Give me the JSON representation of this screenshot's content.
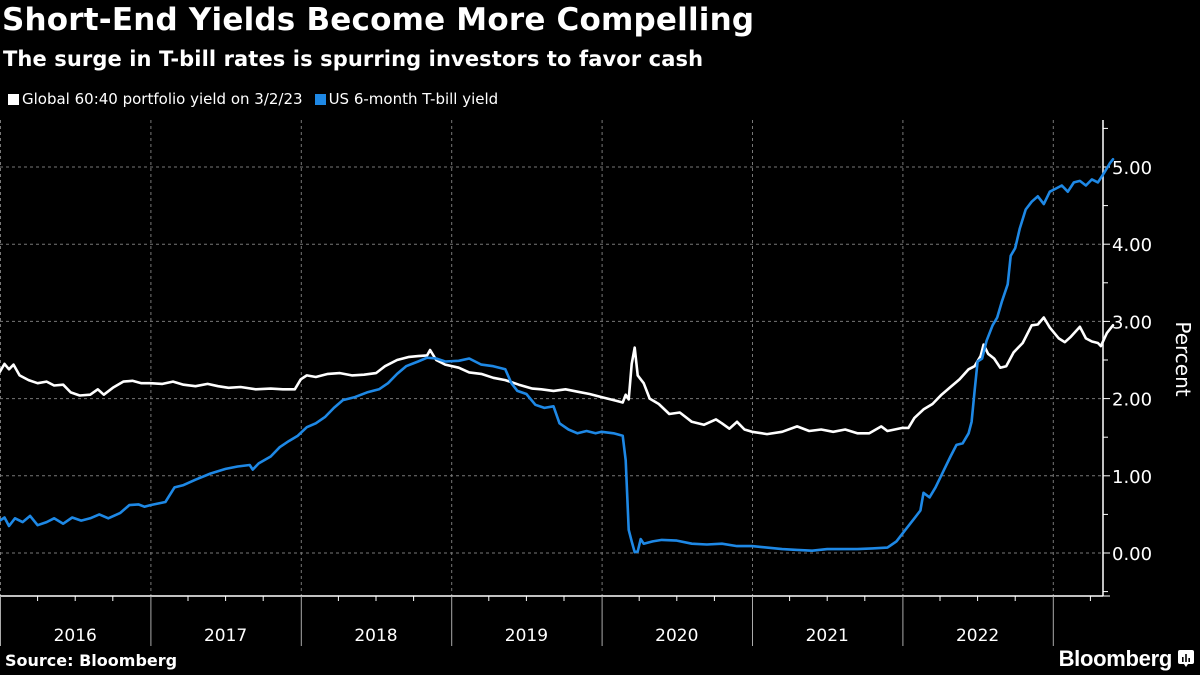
{
  "title": "Short-End Yields Become More Compelling",
  "subtitle": "The surge in T-bill rates is spurring investors to favor cash",
  "source": "Source: Bloomberg",
  "brand": "Bloomberg",
  "colors": {
    "background": "#000000",
    "portfolio": "#ffffff",
    "tbill": "#1e88e5",
    "grid": "#777777"
  },
  "chart_data": {
    "type": "line",
    "title": "Short-End Yields Become More Compelling",
    "subtitle": "The surge in T-bill rates is spurring investors to favor cash",
    "xlabel": "",
    "ylabel": "Percent",
    "xlim": [
      2016.0,
      2023.33
    ],
    "ylim": [
      -0.55,
      5.6
    ],
    "x_ticks": [
      "2016",
      "2017",
      "2018",
      "2019",
      "2020",
      "2021",
      "2022"
    ],
    "y_ticks": [
      "0.00",
      "1.00",
      "2.00",
      "3.00",
      "4.00",
      "5.00"
    ],
    "y_tick_values": [
      0,
      1,
      2,
      3,
      4,
      5
    ],
    "grid": true,
    "legend_position": "top-left",
    "series": [
      {
        "name": "Global 60:40 portfolio yield on 3/2/23",
        "color": "#ffffff",
        "points": [
          [
            2016.0,
            2.35
          ],
          [
            2016.03,
            2.45
          ],
          [
            2016.06,
            2.38
          ],
          [
            2016.09,
            2.44
          ],
          [
            2016.13,
            2.3
          ],
          [
            2016.19,
            2.24
          ],
          [
            2016.25,
            2.2
          ],
          [
            2016.31,
            2.22
          ],
          [
            2016.36,
            2.17
          ],
          [
            2016.42,
            2.18
          ],
          [
            2016.47,
            2.08
          ],
          [
            2016.53,
            2.04
          ],
          [
            2016.6,
            2.05
          ],
          [
            2016.65,
            2.12
          ],
          [
            2016.69,
            2.05
          ],
          [
            2016.75,
            2.14
          ],
          [
            2016.82,
            2.22
          ],
          [
            2016.88,
            2.23
          ],
          [
            2016.94,
            2.2
          ],
          [
            2017.0,
            2.2
          ],
          [
            2017.08,
            2.19
          ],
          [
            2017.15,
            2.22
          ],
          [
            2017.22,
            2.18
          ],
          [
            2017.3,
            2.16
          ],
          [
            2017.38,
            2.19
          ],
          [
            2017.45,
            2.16
          ],
          [
            2017.52,
            2.14
          ],
          [
            2017.6,
            2.15
          ],
          [
            2017.7,
            2.12
          ],
          [
            2017.8,
            2.13
          ],
          [
            2017.88,
            2.12
          ],
          [
            2017.96,
            2.12
          ],
          [
            2018.0,
            2.25
          ],
          [
            2018.04,
            2.3
          ],
          [
            2018.1,
            2.28
          ],
          [
            2018.18,
            2.32
          ],
          [
            2018.26,
            2.33
          ],
          [
            2018.34,
            2.3
          ],
          [
            2018.42,
            2.31
          ],
          [
            2018.5,
            2.33
          ],
          [
            2018.56,
            2.42
          ],
          [
            2018.64,
            2.5
          ],
          [
            2018.72,
            2.54
          ],
          [
            2018.78,
            2.55
          ],
          [
            2018.84,
            2.56
          ],
          [
            2018.86,
            2.63
          ],
          [
            2018.9,
            2.5
          ],
          [
            2018.96,
            2.44
          ],
          [
            2019.05,
            2.4
          ],
          [
            2019.12,
            2.34
          ],
          [
            2019.2,
            2.32
          ],
          [
            2019.28,
            2.27
          ],
          [
            2019.36,
            2.24
          ],
          [
            2019.45,
            2.18
          ],
          [
            2019.54,
            2.13
          ],
          [
            2019.6,
            2.12
          ],
          [
            2019.68,
            2.1
          ],
          [
            2019.76,
            2.12
          ],
          [
            2019.84,
            2.09
          ],
          [
            2019.92,
            2.06
          ],
          [
            2020.0,
            2.02
          ],
          [
            2020.1,
            1.97
          ],
          [
            2020.14,
            1.95
          ],
          [
            2020.16,
            2.05
          ],
          [
            2020.18,
            1.99
          ],
          [
            2020.2,
            2.45
          ],
          [
            2020.22,
            2.66
          ],
          [
            2020.24,
            2.3
          ],
          [
            2020.28,
            2.2
          ],
          [
            2020.32,
            2.0
          ],
          [
            2020.38,
            1.93
          ],
          [
            2020.45,
            1.8
          ],
          [
            2020.52,
            1.82
          ],
          [
            2020.6,
            1.7
          ],
          [
            2020.68,
            1.66
          ],
          [
            2020.76,
            1.73
          ],
          [
            2020.8,
            1.68
          ],
          [
            2020.85,
            1.61
          ],
          [
            2020.9,
            1.7
          ],
          [
            2020.95,
            1.6
          ],
          [
            2021.0,
            1.57
          ],
          [
            2021.1,
            1.54
          ],
          [
            2021.2,
            1.57
          ],
          [
            2021.3,
            1.64
          ],
          [
            2021.38,
            1.58
          ],
          [
            2021.46,
            1.6
          ],
          [
            2021.54,
            1.57
          ],
          [
            2021.62,
            1.6
          ],
          [
            2021.7,
            1.55
          ],
          [
            2021.78,
            1.55
          ],
          [
            2021.86,
            1.64
          ],
          [
            2021.9,
            1.58
          ],
          [
            2022.0,
            1.62
          ],
          [
            2022.04,
            1.62
          ],
          [
            2022.08,
            1.75
          ],
          [
            2022.14,
            1.86
          ],
          [
            2022.2,
            1.93
          ],
          [
            2022.26,
            2.05
          ],
          [
            2022.32,
            2.15
          ],
          [
            2022.38,
            2.25
          ],
          [
            2022.44,
            2.38
          ],
          [
            2022.48,
            2.42
          ],
          [
            2022.52,
            2.55
          ],
          [
            2022.54,
            2.7
          ],
          [
            2022.57,
            2.58
          ],
          [
            2022.61,
            2.52
          ],
          [
            2022.65,
            2.4
          ],
          [
            2022.69,
            2.42
          ],
          [
            2022.74,
            2.6
          ],
          [
            2022.8,
            2.72
          ],
          [
            2022.86,
            2.95
          ],
          [
            2022.9,
            2.96
          ],
          [
            2022.94,
            3.05
          ],
          [
            2022.98,
            2.92
          ],
          [
            2023.04,
            2.78
          ],
          [
            2023.08,
            2.73
          ],
          [
            2023.12,
            2.8
          ],
          [
            2023.18,
            2.93
          ],
          [
            2023.22,
            2.78
          ],
          [
            2023.26,
            2.74
          ],
          [
            2023.3,
            2.72
          ],
          [
            2023.32,
            2.68
          ],
          [
            2023.36,
            2.85
          ],
          [
            2023.4,
            2.95
          ]
        ]
      },
      {
        "name": "US 6-month T-bill yield",
        "color": "#1e88e5",
        "points": [
          [
            2016.0,
            0.42
          ],
          [
            2016.03,
            0.46
          ],
          [
            2016.06,
            0.35
          ],
          [
            2016.1,
            0.45
          ],
          [
            2016.15,
            0.4
          ],
          [
            2016.2,
            0.48
          ],
          [
            2016.25,
            0.36
          ],
          [
            2016.31,
            0.4
          ],
          [
            2016.36,
            0.45
          ],
          [
            2016.42,
            0.38
          ],
          [
            2016.48,
            0.46
          ],
          [
            2016.54,
            0.42
          ],
          [
            2016.6,
            0.45
          ],
          [
            2016.66,
            0.5
          ],
          [
            2016.72,
            0.45
          ],
          [
            2016.8,
            0.52
          ],
          [
            2016.86,
            0.62
          ],
          [
            2016.92,
            0.63
          ],
          [
            2016.96,
            0.6
          ],
          [
            2017.0,
            0.62
          ],
          [
            2017.1,
            0.66
          ],
          [
            2017.16,
            0.85
          ],
          [
            2017.22,
            0.88
          ],
          [
            2017.3,
            0.95
          ],
          [
            2017.4,
            1.03
          ],
          [
            2017.5,
            1.09
          ],
          [
            2017.58,
            1.12
          ],
          [
            2017.66,
            1.14
          ],
          [
            2017.68,
            1.08
          ],
          [
            2017.72,
            1.16
          ],
          [
            2017.8,
            1.25
          ],
          [
            2017.86,
            1.37
          ],
          [
            2017.92,
            1.45
          ],
          [
            2017.98,
            1.52
          ],
          [
            2018.04,
            1.63
          ],
          [
            2018.1,
            1.68
          ],
          [
            2018.16,
            1.76
          ],
          [
            2018.22,
            1.88
          ],
          [
            2018.28,
            1.98
          ],
          [
            2018.36,
            2.02
          ],
          [
            2018.44,
            2.08
          ],
          [
            2018.52,
            2.12
          ],
          [
            2018.58,
            2.2
          ],
          [
            2018.64,
            2.32
          ],
          [
            2018.7,
            2.42
          ],
          [
            2018.78,
            2.48
          ],
          [
            2018.84,
            2.53
          ],
          [
            2018.9,
            2.52
          ],
          [
            2018.96,
            2.48
          ],
          [
            2019.05,
            2.49
          ],
          [
            2019.12,
            2.52
          ],
          [
            2019.2,
            2.44
          ],
          [
            2019.28,
            2.42
          ],
          [
            2019.36,
            2.38
          ],
          [
            2019.4,
            2.2
          ],
          [
            2019.44,
            2.1
          ],
          [
            2019.5,
            2.06
          ],
          [
            2019.56,
            1.92
          ],
          [
            2019.62,
            1.88
          ],
          [
            2019.68,
            1.9
          ],
          [
            2019.72,
            1.68
          ],
          [
            2019.78,
            1.6
          ],
          [
            2019.84,
            1.55
          ],
          [
            2019.9,
            1.58
          ],
          [
            2019.96,
            1.55
          ],
          [
            2020.0,
            1.57
          ],
          [
            2020.08,
            1.55
          ],
          [
            2020.14,
            1.52
          ],
          [
            2020.16,
            1.2
          ],
          [
            2020.18,
            0.3
          ],
          [
            2020.2,
            0.15
          ],
          [
            2020.22,
            0.01
          ],
          [
            2020.24,
            0.02
          ],
          [
            2020.26,
            0.18
          ],
          [
            2020.28,
            0.12
          ],
          [
            2020.34,
            0.15
          ],
          [
            2020.4,
            0.17
          ],
          [
            2020.5,
            0.16
          ],
          [
            2020.6,
            0.12
          ],
          [
            2020.7,
            0.11
          ],
          [
            2020.8,
            0.12
          ],
          [
            2020.9,
            0.09
          ],
          [
            2021.0,
            0.09
          ],
          [
            2021.1,
            0.07
          ],
          [
            2021.2,
            0.05
          ],
          [
            2021.3,
            0.04
          ],
          [
            2021.4,
            0.03
          ],
          [
            2021.5,
            0.05
          ],
          [
            2021.6,
            0.05
          ],
          [
            2021.7,
            0.05
          ],
          [
            2021.8,
            0.06
          ],
          [
            2021.9,
            0.07
          ],
          [
            2021.96,
            0.15
          ],
          [
            2022.02,
            0.3
          ],
          [
            2022.08,
            0.45
          ],
          [
            2022.12,
            0.55
          ],
          [
            2022.14,
            0.78
          ],
          [
            2022.18,
            0.72
          ],
          [
            2022.22,
            0.85
          ],
          [
            2022.27,
            1.05
          ],
          [
            2022.32,
            1.25
          ],
          [
            2022.36,
            1.4
          ],
          [
            2022.4,
            1.42
          ],
          [
            2022.44,
            1.55
          ],
          [
            2022.46,
            1.7
          ],
          [
            2022.48,
            2.1
          ],
          [
            2022.5,
            2.48
          ],
          [
            2022.53,
            2.52
          ],
          [
            2022.56,
            2.75
          ],
          [
            2022.6,
            2.95
          ],
          [
            2022.63,
            3.05
          ],
          [
            2022.66,
            3.25
          ],
          [
            2022.7,
            3.48
          ],
          [
            2022.72,
            3.85
          ],
          [
            2022.75,
            3.95
          ],
          [
            2022.78,
            4.2
          ],
          [
            2022.82,
            4.45
          ],
          [
            2022.86,
            4.55
          ],
          [
            2022.9,
            4.62
          ],
          [
            2022.94,
            4.52
          ],
          [
            2022.98,
            4.68
          ],
          [
            2023.02,
            4.72
          ],
          [
            2023.06,
            4.76
          ],
          [
            2023.1,
            4.68
          ],
          [
            2023.14,
            4.8
          ],
          [
            2023.18,
            4.82
          ],
          [
            2023.22,
            4.76
          ],
          [
            2023.26,
            4.84
          ],
          [
            2023.3,
            4.8
          ],
          [
            2023.34,
            4.92
          ],
          [
            2023.38,
            5.05
          ],
          [
            2023.4,
            5.1
          ]
        ]
      }
    ]
  }
}
